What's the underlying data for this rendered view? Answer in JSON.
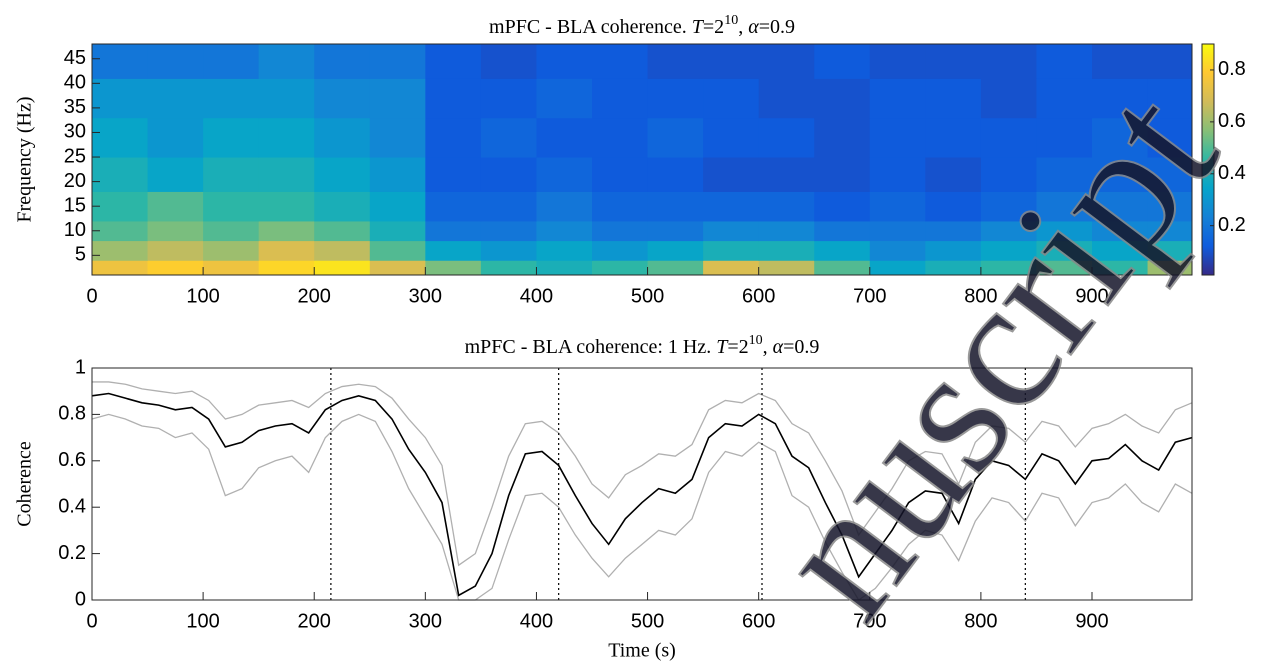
{
  "chart_data": [
    {
      "type": "heatmap",
      "title_parts": [
        "mPFC - BLA coherence. ",
        "T",
        "=2",
        "10",
        ", ",
        "α",
        "=0.9"
      ],
      "ylabel": "Frequency (Hz)",
      "x_edges": [
        0,
        50,
        100,
        150,
        200,
        250,
        300,
        350,
        400,
        450,
        500,
        550,
        600,
        650,
        700,
        750,
        800,
        850,
        900,
        950,
        990
      ],
      "y_edges": [
        1,
        4,
        8,
        12,
        18,
        25,
        33,
        41,
        48
      ],
      "z": [
        [
          0.75,
          0.8,
          0.75,
          0.82,
          0.85,
          0.7,
          0.55,
          0.45,
          0.4,
          0.45,
          0.5,
          0.7,
          0.65,
          0.5,
          0.35,
          0.4,
          0.45,
          0.5,
          0.45,
          0.6
        ],
        [
          0.6,
          0.65,
          0.6,
          0.7,
          0.65,
          0.5,
          0.35,
          0.3,
          0.35,
          0.3,
          0.35,
          0.4,
          0.4,
          0.35,
          0.25,
          0.3,
          0.35,
          0.4,
          0.35,
          0.4
        ],
        [
          0.5,
          0.55,
          0.5,
          0.55,
          0.5,
          0.4,
          0.2,
          0.2,
          0.25,
          0.2,
          0.2,
          0.25,
          0.25,
          0.2,
          0.2,
          0.2,
          0.25,
          0.3,
          0.25,
          0.25
        ],
        [
          0.45,
          0.5,
          0.45,
          0.45,
          0.4,
          0.35,
          0.15,
          0.15,
          0.2,
          0.15,
          0.15,
          0.15,
          0.15,
          0.12,
          0.15,
          0.12,
          0.15,
          0.2,
          0.2,
          0.2
        ],
        [
          0.4,
          0.35,
          0.4,
          0.4,
          0.35,
          0.3,
          0.12,
          0.12,
          0.15,
          0.12,
          0.12,
          0.1,
          0.1,
          0.1,
          0.12,
          0.1,
          0.12,
          0.15,
          0.15,
          0.15
        ],
        [
          0.35,
          0.3,
          0.35,
          0.35,
          0.3,
          0.25,
          0.12,
          0.15,
          0.12,
          0.12,
          0.15,
          0.12,
          0.12,
          0.1,
          0.12,
          0.12,
          0.12,
          0.12,
          0.15,
          0.12
        ],
        [
          0.3,
          0.3,
          0.3,
          0.3,
          0.25,
          0.25,
          0.12,
          0.12,
          0.15,
          0.12,
          0.12,
          0.12,
          0.1,
          0.1,
          0.12,
          0.12,
          0.1,
          0.12,
          0.12,
          0.12
        ],
        [
          0.2,
          0.2,
          0.2,
          0.25,
          0.2,
          0.2,
          0.12,
          0.1,
          0.12,
          0.12,
          0.1,
          0.1,
          0.1,
          0.12,
          0.1,
          0.1,
          0.1,
          0.12,
          0.1,
          0.1
        ]
      ],
      "xlim": [
        0,
        990
      ],
      "xticks": [
        0,
        100,
        200,
        300,
        400,
        500,
        600,
        700,
        800,
        900
      ],
      "ylim": [
        1,
        48
      ],
      "yticks": [
        5,
        10,
        15,
        20,
        25,
        30,
        35,
        40,
        45
      ],
      "clim": [
        0.01,
        0.9
      ],
      "cticks": [
        0.2,
        0.4,
        0.6,
        0.8
      ],
      "colormap": [
        "#352a87",
        "#0f5cdd",
        "#1481d6",
        "#06a4ca",
        "#2eb7a4",
        "#87bf77",
        "#d1bb59",
        "#fec832",
        "#f9fb0e"
      ]
    },
    {
      "type": "line",
      "title_parts": [
        "mPFC - BLA coherence: 1 Hz. ",
        "T",
        "=2",
        "10",
        ", ",
        "α",
        "=0.9"
      ],
      "xlabel": "Time (s)",
      "ylabel": "Coherence",
      "x": [
        0,
        15,
        30,
        45,
        60,
        75,
        90,
        105,
        120,
        135,
        150,
        165,
        180,
        195,
        210,
        225,
        240,
        255,
        270,
        285,
        300,
        315,
        330,
        345,
        360,
        375,
        390,
        405,
        420,
        435,
        450,
        465,
        480,
        495,
        510,
        525,
        540,
        555,
        570,
        585,
        600,
        615,
        630,
        645,
        660,
        675,
        690,
        705,
        720,
        735,
        750,
        765,
        780,
        795,
        810,
        825,
        840,
        855,
        870,
        885,
        900,
        915,
        930,
        945,
        960,
        975,
        990
      ],
      "series": [
        {
          "color": "#b0b0b0",
          "values": [
            0.94,
            0.94,
            0.93,
            0.91,
            0.9,
            0.89,
            0.9,
            0.86,
            0.78,
            0.8,
            0.84,
            0.85,
            0.86,
            0.83,
            0.89,
            0.92,
            0.93,
            0.92,
            0.87,
            0.78,
            0.7,
            0.58,
            0.15,
            0.2,
            0.4,
            0.62,
            0.76,
            0.77,
            0.72,
            0.62,
            0.5,
            0.44,
            0.54,
            0.58,
            0.63,
            0.62,
            0.67,
            0.82,
            0.86,
            0.85,
            0.89,
            0.86,
            0.76,
            0.72,
            0.6,
            0.47,
            0.28,
            0.38,
            0.48,
            0.6,
            0.64,
            0.63,
            0.5,
            0.68,
            0.75,
            0.74,
            0.68,
            0.77,
            0.75,
            0.66,
            0.74,
            0.76,
            0.8,
            0.75,
            0.72,
            0.82,
            0.85
          ]
        },
        {
          "color": "#b0b0b0",
          "values": [
            0.78,
            0.8,
            0.78,
            0.75,
            0.74,
            0.7,
            0.72,
            0.65,
            0.45,
            0.48,
            0.57,
            0.6,
            0.62,
            0.55,
            0.7,
            0.77,
            0.8,
            0.77,
            0.64,
            0.48,
            0.36,
            0.24,
            0.0,
            0.0,
            0.05,
            0.26,
            0.45,
            0.46,
            0.4,
            0.28,
            0.18,
            0.1,
            0.18,
            0.24,
            0.3,
            0.28,
            0.35,
            0.55,
            0.64,
            0.62,
            0.68,
            0.64,
            0.45,
            0.4,
            0.25,
            0.12,
            0.0,
            0.05,
            0.14,
            0.24,
            0.3,
            0.28,
            0.17,
            0.34,
            0.44,
            0.42,
            0.34,
            0.46,
            0.44,
            0.32,
            0.42,
            0.44,
            0.5,
            0.42,
            0.38,
            0.5,
            0.46
          ]
        },
        {
          "color": "#000000",
          "values": [
            0.88,
            0.89,
            0.87,
            0.85,
            0.84,
            0.82,
            0.83,
            0.78,
            0.66,
            0.68,
            0.73,
            0.75,
            0.76,
            0.72,
            0.82,
            0.86,
            0.88,
            0.86,
            0.78,
            0.65,
            0.55,
            0.42,
            0.02,
            0.06,
            0.2,
            0.45,
            0.63,
            0.64,
            0.58,
            0.45,
            0.33,
            0.24,
            0.35,
            0.42,
            0.48,
            0.46,
            0.52,
            0.7,
            0.76,
            0.75,
            0.8,
            0.76,
            0.62,
            0.57,
            0.42,
            0.28,
            0.1,
            0.2,
            0.3,
            0.42,
            0.47,
            0.46,
            0.33,
            0.52,
            0.6,
            0.58,
            0.52,
            0.63,
            0.6,
            0.5,
            0.6,
            0.61,
            0.67,
            0.6,
            0.56,
            0.68,
            0.7
          ]
        }
      ],
      "markers": [
        215,
        420,
        603,
        840
      ],
      "xlim": [
        0,
        990
      ],
      "xticks": [
        0,
        100,
        200,
        300,
        400,
        500,
        600,
        700,
        800,
        900
      ],
      "ylim": [
        0,
        1
      ],
      "yticks": [
        0,
        0.2,
        0.4,
        0.6,
        0.8,
        1
      ]
    }
  ],
  "watermark": "nuscript"
}
